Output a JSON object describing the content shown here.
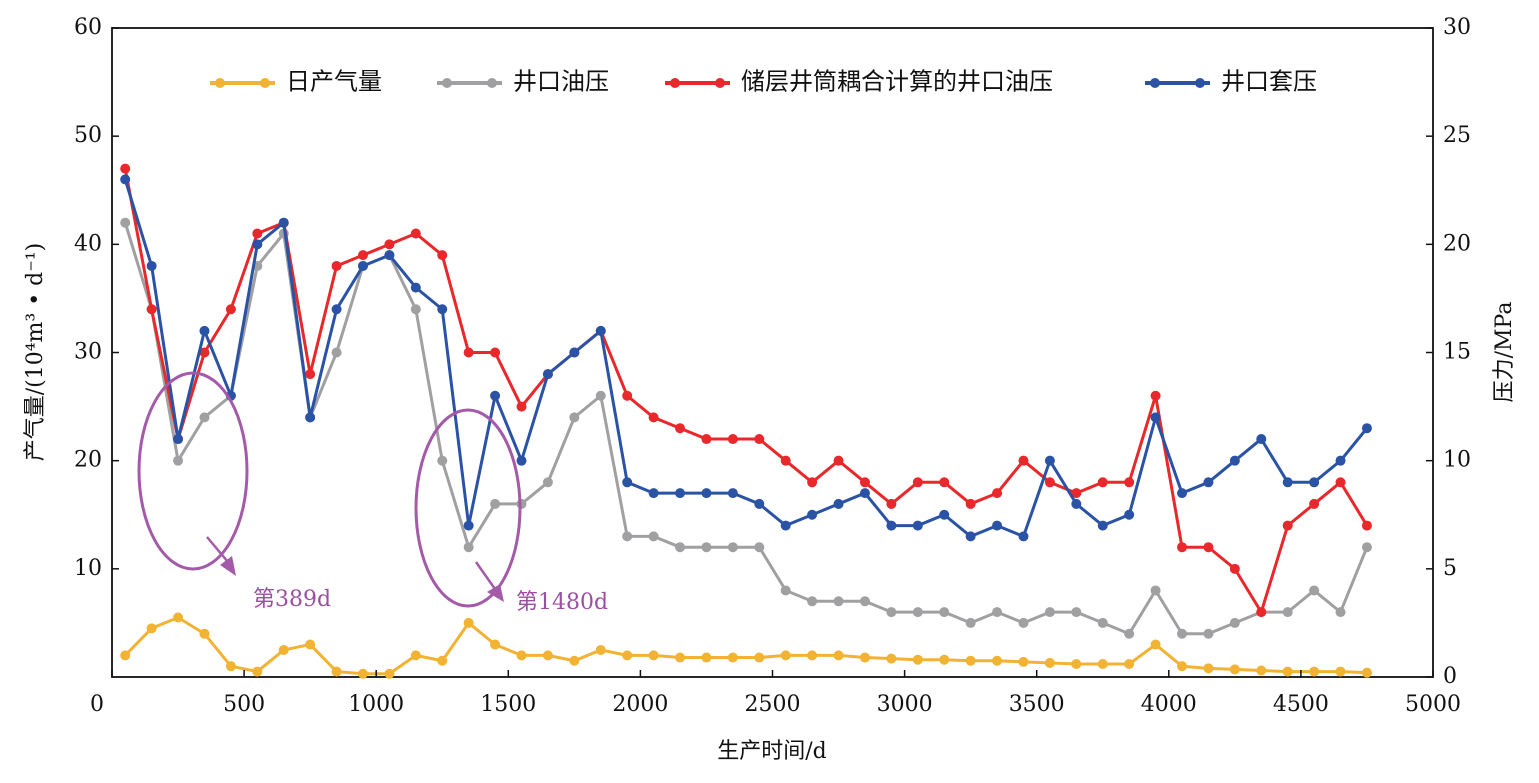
{
  "chart_data": {
    "type": "line",
    "x_label": "生产时间/d",
    "y_label": "产气量/(10⁴m³ • d⁻¹)",
    "y2_label": "压力/MPa",
    "xlim": [
      0,
      5000
    ],
    "xticks": [
      0,
      500,
      1000,
      1500,
      2000,
      2500,
      3000,
      3500,
      4000,
      4500,
      5000
    ],
    "ylim": [
      0,
      60
    ],
    "yticks": [
      10,
      20,
      30,
      40,
      50,
      60
    ],
    "y2lim": [
      0,
      30
    ],
    "y2ticks": [
      0,
      5,
      10,
      15,
      20,
      25,
      30
    ],
    "legend": "top",
    "annotations": [
      "第389d",
      "第1480d"
    ],
    "x": [
      50,
      150,
      250,
      350,
      450,
      550,
      650,
      750,
      850,
      950,
      1050,
      1150,
      1250,
      1350,
      1450,
      1550,
      1650,
      1750,
      1850,
      1950,
      2050,
      2150,
      2250,
      2350,
      2450,
      2550,
      2650,
      2750,
      2850,
      2950,
      3050,
      3150,
      3250,
      3350,
      3450,
      3550,
      3650,
      3750,
      3850,
      3950,
      4050,
      4150,
      4250,
      4350,
      4450,
      4550,
      4650,
      4750
    ],
    "series": [
      {
        "name": "日产气量",
        "color": "#f2b233",
        "axis": "y",
        "values": [
          2,
          4.5,
          5.5,
          4,
          1,
          0.5,
          2.5,
          3,
          0.5,
          0.3,
          0.3,
          2,
          1.5,
          5,
          3,
          2,
          2,
          1.5,
          2.5,
          2,
          2,
          1.8,
          1.8,
          1.8,
          1.8,
          2,
          2,
          2,
          1.8,
          1.7,
          1.6,
          1.6,
          1.5,
          1.5,
          1.4,
          1.3,
          1.2,
          1.2,
          1.2,
          3,
          1,
          0.8,
          0.7,
          0.6,
          0.5,
          0.5,
          0.5,
          0.4
        ]
      },
      {
        "name": "井口油压",
        "color": "#a0a0a3",
        "axis": "y2",
        "values": [
          21,
          17,
          10,
          12,
          13,
          19,
          20.5,
          12,
          15,
          19,
          19.5,
          17,
          10,
          6,
          8,
          8,
          9,
          12,
          13,
          6.5,
          6.5,
          6,
          6,
          6,
          6,
          4,
          3.5,
          3.5,
          3.5,
          3,
          3,
          3,
          2.5,
          3,
          2.5,
          3,
          3,
          2.5,
          2,
          4,
          2,
          2,
          2.5,
          3,
          3,
          4,
          3,
          6
        ]
      },
      {
        "name": "储层井筒耦合计算的井口油压",
        "color": "#e8282b",
        "axis": "y2",
        "values": [
          23.5,
          17,
          11,
          15,
          17,
          20.5,
          21,
          14,
          19,
          19.5,
          20,
          20.5,
          19.5,
          15,
          15,
          12.5,
          14,
          15,
          16,
          13,
          12,
          11.5,
          11,
          11,
          11,
          10,
          9,
          10,
          9,
          8,
          9,
          9,
          8,
          8.5,
          10,
          9,
          8.5,
          9,
          9,
          13,
          6,
          6,
          5,
          3,
          7,
          8,
          9,
          7
        ]
      },
      {
        "name": "井口套压",
        "color": "#2a52a5",
        "axis": "y2",
        "values": [
          23,
          19,
          11,
          16,
          13,
          20,
          21,
          12,
          17,
          19,
          19.5,
          18,
          17,
          7,
          13,
          10,
          14,
          15,
          16,
          9,
          8.5,
          8.5,
          8.5,
          8.5,
          8,
          7,
          7.5,
          8,
          8.5,
          7,
          7,
          7.5,
          6.5,
          7,
          6.5,
          10,
          8,
          7,
          7.5,
          12,
          8.5,
          9,
          10,
          11,
          9,
          9,
          10,
          11.5
        ]
      }
    ]
  }
}
